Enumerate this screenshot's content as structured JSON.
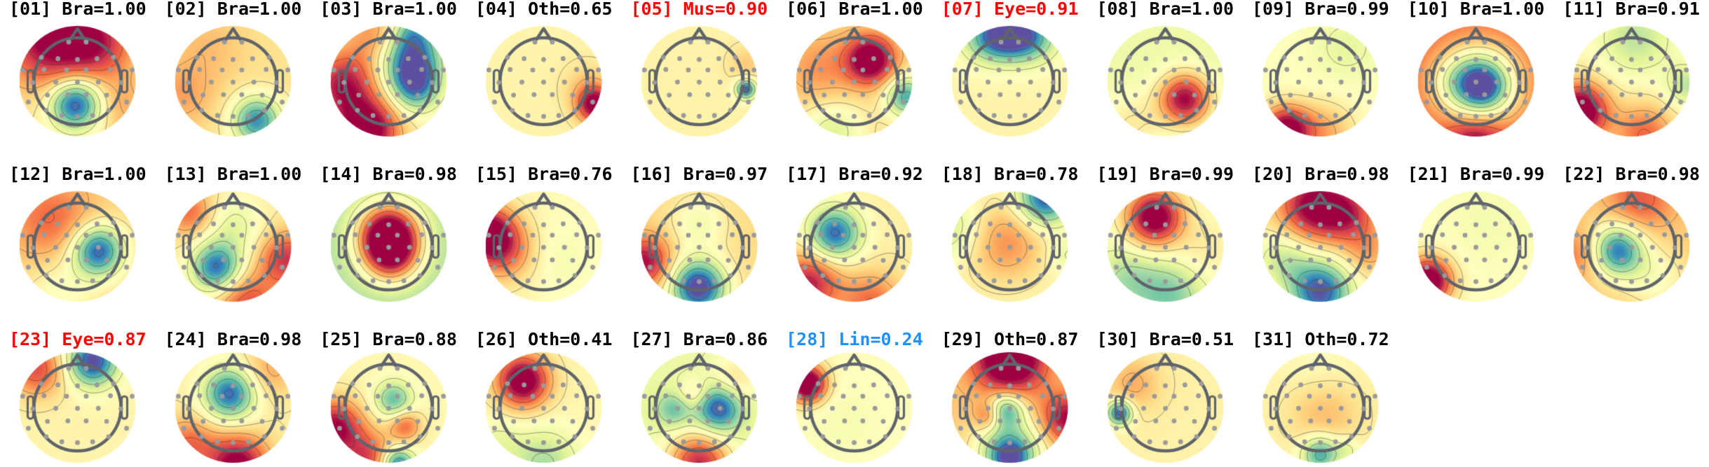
{
  "figure": {
    "background_color": "#ffffff",
    "head_outline_color": "#5f646b",
    "electrode_dot_color": "#9a9a9a",
    "contour_line_color": "rgba(50,50,50,0.55)",
    "label_colors": {
      "normal": "#000000",
      "artifact": "#ff0000",
      "line": "#1e90ff"
    }
  },
  "chart_data": {
    "type": "heatmap",
    "subtype": "eeg_ica_component_topomap_grid",
    "title": "",
    "rows": [
      11,
      11,
      9
    ],
    "colormap_name": "Spectral_r",
    "colormap_stops": [
      [
        -1.0,
        "#5e4fa2"
      ],
      [
        -0.8,
        "#3288bd"
      ],
      [
        -0.6,
        "#66c2a5"
      ],
      [
        -0.4,
        "#abdda4"
      ],
      [
        -0.2,
        "#e6f598"
      ],
      [
        0.0,
        "#ffffbf"
      ],
      [
        0.2,
        "#fee08b"
      ],
      [
        0.4,
        "#fdae61"
      ],
      [
        0.6,
        "#f46d43"
      ],
      [
        0.8,
        "#d53e4f"
      ],
      [
        1.0,
        "#9e0142"
      ]
    ],
    "contour_levels": [
      -0.85,
      -0.6,
      -0.35,
      -0.12,
      0.12,
      0.35,
      0.6,
      0.85
    ],
    "electrodes": [
      [
        -0.2,
        -0.9
      ],
      [
        0.2,
        -0.9
      ],
      [
        -0.83,
        -0.55
      ],
      [
        -0.45,
        -0.52
      ],
      [
        0,
        -0.5
      ],
      [
        0.45,
        -0.52
      ],
      [
        0.83,
        -0.55
      ],
      [
        -1.26,
        -0.26
      ],
      [
        -0.77,
        -0.27
      ],
      [
        -0.25,
        -0.26
      ],
      [
        0.2,
        -0.26
      ],
      [
        0.76,
        -0.27
      ],
      [
        1.26,
        -0.26
      ],
      [
        -1.03,
        0.03
      ],
      [
        -0.5,
        0.02
      ],
      [
        0,
        0.02
      ],
      [
        0.48,
        0.02
      ],
      [
        1.0,
        0.03
      ],
      [
        -0.69,
        0.32
      ],
      [
        -0.22,
        0.31
      ],
      [
        0.2,
        0.31
      ],
      [
        0.67,
        0.32
      ],
      [
        -1.13,
        0.48
      ],
      [
        1.13,
        0.48
      ],
      [
        -0.72,
        0.67
      ],
      [
        0.72,
        0.67
      ],
      [
        -0.36,
        0.79
      ],
      [
        0,
        0.81
      ],
      [
        0.35,
        0.79
      ]
    ],
    "components": [
      {
        "num": 1,
        "label": "Bra",
        "prob": 1.0,
        "title": "[01] Bra=1.00",
        "title_color": "#000000",
        "base": 0.12,
        "sources": [
          [
            -0.6,
            -1.0,
            0.95,
            0.8
          ],
          [
            0.5,
            -0.9,
            0.55,
            0.6
          ],
          [
            -0.05,
            0.52,
            -1.15,
            0.42
          ],
          [
            1.1,
            0.6,
            0.25,
            0.5
          ]
        ]
      },
      {
        "num": 2,
        "label": "Bra",
        "prob": 1.0,
        "title": "[02] Bra=1.00",
        "title_color": "#000000",
        "base": 0.18,
        "sources": [
          [
            0.55,
            0.92,
            -0.95,
            0.4
          ],
          [
            -0.6,
            -0.8,
            0.15,
            0.6
          ],
          [
            -1.2,
            0.3,
            0.25,
            0.5
          ]
        ]
      },
      {
        "num": 3,
        "label": "Bra",
        "prob": 1.0,
        "title": "[03] Bra=1.00",
        "title_color": "#000000",
        "base": 0.08,
        "sources": [
          [
            0.5,
            -0.5,
            -1.05,
            0.5
          ],
          [
            0.62,
            0.15,
            -0.7,
            0.38
          ],
          [
            -1.05,
            0.1,
            0.85,
            0.55
          ],
          [
            -0.5,
            1.15,
            1.1,
            0.5
          ],
          [
            0.55,
            -1.2,
            -0.5,
            0.35
          ],
          [
            -0.25,
            -1.05,
            0.45,
            0.5
          ]
        ]
      },
      {
        "num": 4,
        "label": "Oth",
        "prob": 0.65,
        "title": "[04] Oth=0.65",
        "title_color": "#000000",
        "base": 0.07,
        "sources": [
          [
            1.2,
            0.55,
            1.0,
            0.3
          ],
          [
            1.0,
            0.1,
            0.2,
            0.4
          ]
        ]
      },
      {
        "num": 5,
        "label": "Mus",
        "prob": 0.9,
        "title": "[05] Mus=0.90",
        "title_color": "#ff0000",
        "base": 0.08,
        "sources": [
          [
            1.08,
            0.18,
            -1.0,
            0.16
          ],
          [
            1.1,
            -0.4,
            0.2,
            0.3
          ]
        ]
      },
      {
        "num": 6,
        "label": "Bra",
        "prob": 1.0,
        "title": "[06] Bra=1.00",
        "title_color": "#000000",
        "base": 0.18,
        "sources": [
          [
            0.38,
            -0.5,
            1.05,
            0.4
          ],
          [
            1.2,
            0.35,
            -0.85,
            0.33
          ],
          [
            -0.5,
            1.15,
            -0.4,
            0.5
          ],
          [
            -0.8,
            -0.3,
            0.3,
            0.6
          ]
        ]
      },
      {
        "num": 7,
        "label": "Eye",
        "prob": 0.91,
        "title": "[07] Eye=0.91",
        "title_color": "#ff0000",
        "base": 0.07,
        "sources": [
          [
            0.0,
            -1.12,
            -1.15,
            0.42
          ],
          [
            -0.6,
            -1.0,
            -0.5,
            0.4
          ],
          [
            0.6,
            -1.0,
            -0.5,
            0.4
          ]
        ]
      },
      {
        "num": 8,
        "label": "Bra",
        "prob": 1.0,
        "title": "[08] Bra=1.00",
        "title_color": "#000000",
        "base": -0.12,
        "sources": [
          [
            0.45,
            0.42,
            1.1,
            0.42
          ],
          [
            -0.8,
            1.0,
            0.25,
            0.5
          ]
        ]
      },
      {
        "num": 9,
        "label": "Bra",
        "prob": 0.99,
        "title": "[09] Bra=0.99",
        "title_color": "#000000",
        "base": -0.02,
        "sources": [
          [
            -0.8,
            1.15,
            1.15,
            0.4
          ],
          [
            0.1,
            1.2,
            0.4,
            0.5
          ],
          [
            0.6,
            -0.8,
            -0.15,
            0.5
          ]
        ]
      },
      {
        "num": 10,
        "label": "Bra",
        "prob": 1.0,
        "title": "[10] Bra=1.00",
        "title_color": "#000000",
        "base": 0.6,
        "sources": [
          [
            0.12,
            0.08,
            -1.35,
            0.58
          ],
          [
            0.18,
            0.12,
            -0.4,
            0.3
          ],
          [
            -0.45,
            0.0,
            -0.35,
            0.45
          ],
          [
            0.0,
            1.35,
            0.5,
            0.45
          ]
        ]
      },
      {
        "num": 11,
        "label": "Bra",
        "prob": 0.91,
        "title": "[11] Bra=0.91",
        "title_color": "#000000",
        "base": 0.07,
        "sources": [
          [
            0.1,
            -1.0,
            -0.4,
            0.6
          ],
          [
            -1.2,
            0.7,
            1.2,
            0.45
          ],
          [
            0.3,
            1.25,
            0.55,
            0.5
          ],
          [
            1.3,
            0.1,
            -0.4,
            0.35
          ]
        ]
      },
      {
        "num": 12,
        "label": "Bra",
        "prob": 1.0,
        "title": "[12] Bra=1.00",
        "title_color": "#000000",
        "base": 0.22,
        "sources": [
          [
            -0.6,
            -0.6,
            0.4,
            0.7
          ],
          [
            0.48,
            0.1,
            -1.15,
            0.42
          ],
          [
            -0.4,
            1.0,
            -0.25,
            0.6
          ]
        ]
      },
      {
        "num": 13,
        "label": "Bra",
        "prob": 1.0,
        "title": "[13] Bra=1.00",
        "title_color": "#000000",
        "base": 0.12,
        "sources": [
          [
            -0.38,
            0.5,
            -1.0,
            0.4
          ],
          [
            0.0,
            -0.45,
            -0.3,
            0.5
          ],
          [
            1.25,
            0.3,
            0.7,
            0.45
          ],
          [
            -1.0,
            -0.8,
            0.5,
            0.4
          ],
          [
            0.3,
            1.3,
            0.6,
            0.5
          ]
        ]
      },
      {
        "num": 14,
        "label": "Bra",
        "prob": 0.98,
        "title": "[14] Bra=0.98",
        "title_color": "#000000",
        "base": -0.38,
        "sources": [
          [
            0.0,
            -0.3,
            1.5,
            0.5
          ],
          [
            0.05,
            0.2,
            1.0,
            0.45
          ]
        ]
      },
      {
        "num": 15,
        "label": "Bra",
        "prob": 0.76,
        "title": "[15] Bra=0.76",
        "title_color": "#000000",
        "base": 0.04,
        "sources": [
          [
            -1.3,
            -0.3,
            1.1,
            0.45
          ],
          [
            -0.85,
            0.15,
            0.45,
            0.5
          ],
          [
            0.35,
            0.3,
            -0.12,
            0.6
          ]
        ]
      },
      {
        "num": 16,
        "label": "Bra",
        "prob": 0.97,
        "title": "[16] Bra=0.97",
        "title_color": "#000000",
        "base": 0.22,
        "sources": [
          [
            0.0,
            -0.55,
            -0.3,
            0.45
          ],
          [
            -0.02,
            0.95,
            -1.3,
            0.45
          ],
          [
            -1.25,
            0.35,
            0.75,
            0.4
          ]
        ]
      },
      {
        "num": 17,
        "label": "Bra",
        "prob": 0.92,
        "title": "[17] Bra=0.92",
        "title_color": "#000000",
        "base": 0.1,
        "sources": [
          [
            -0.45,
            -0.3,
            -1.0,
            0.42
          ],
          [
            -1.05,
            0.85,
            0.8,
            0.5
          ],
          [
            0.4,
            1.3,
            0.5,
            0.5
          ]
        ]
      },
      {
        "num": 18,
        "label": "Bra",
        "prob": 0.78,
        "title": "[18] Bra=0.78",
        "title_color": "#000000",
        "base": 0.04,
        "sources": [
          [
            -0.1,
            -0.1,
            0.45,
            0.65
          ],
          [
            0.8,
            -1.1,
            -1.0,
            0.42
          ],
          [
            -1.25,
            -0.4,
            -0.3,
            0.5
          ],
          [
            1.3,
            0.2,
            -0.2,
            0.3
          ]
        ]
      },
      {
        "num": 19,
        "label": "Bra",
        "prob": 0.99,
        "title": "[19] Bra=0.99",
        "title_color": "#000000",
        "base": -0.02,
        "sources": [
          [
            -0.25,
            -0.68,
            1.2,
            0.45
          ],
          [
            0.1,
            1.15,
            -0.5,
            0.55
          ],
          [
            -0.9,
            0.75,
            -0.35,
            0.5
          ],
          [
            0.9,
            0.1,
            0.15,
            0.5
          ]
        ]
      },
      {
        "num": 20,
        "label": "Bra",
        "prob": 0.98,
        "title": "[20] Bra=0.98",
        "title_color": "#000000",
        "base": 0.12,
        "sources": [
          [
            -0.15,
            -0.95,
            0.95,
            0.55
          ],
          [
            0.65,
            -0.75,
            0.6,
            0.45
          ],
          [
            0.0,
            1.05,
            -1.1,
            0.5
          ],
          [
            -0.85,
            0.3,
            -0.4,
            0.45
          ],
          [
            1.1,
            0.1,
            0.3,
            0.4
          ]
        ]
      },
      {
        "num": 21,
        "label": "Bra",
        "prob": 0.99,
        "title": "[21] Bra=0.99",
        "title_color": "#000000",
        "base": 0.0,
        "sources": [
          [
            -1.1,
            0.8,
            1.25,
            0.38
          ],
          [
            0.3,
            -0.6,
            -0.08,
            0.8
          ]
        ]
      },
      {
        "num": 22,
        "label": "Bra",
        "prob": 0.98,
        "title": "[22] Bra=0.98",
        "title_color": "#000000",
        "base": 0.28,
        "sources": [
          [
            -0.32,
            0.1,
            -1.1,
            0.42
          ],
          [
            0.55,
            0.75,
            -0.3,
            0.5
          ],
          [
            0.2,
            -1.1,
            0.4,
            0.5
          ],
          [
            -1.25,
            0.2,
            0.3,
            0.4
          ]
        ]
      },
      {
        "num": 23,
        "label": "Eye",
        "prob": 0.87,
        "title": "[23] Eye=0.87",
        "title_color": "#ff0000",
        "base": 0.07,
        "sources": [
          [
            0.35,
            -1.08,
            -1.1,
            0.4
          ],
          [
            -0.95,
            -0.9,
            0.65,
            0.45
          ]
        ]
      },
      {
        "num": 24,
        "label": "Bra",
        "prob": 0.98,
        "title": "[24] Bra=0.98",
        "title_color": "#000000",
        "base": 0.1,
        "sources": [
          [
            -0.08,
            -0.32,
            -1.0,
            0.42
          ],
          [
            0.1,
            1.35,
            1.0,
            0.5
          ],
          [
            -1.05,
            0.85,
            0.5,
            0.45
          ],
          [
            0.85,
            -0.85,
            0.3,
            0.45
          ]
        ]
      },
      {
        "num": 25,
        "label": "Bra",
        "prob": 0.88,
        "title": "[25] Bra=0.88",
        "title_color": "#000000",
        "base": 0.05,
        "sources": [
          [
            0.12,
            -0.18,
            -0.65,
            0.3
          ],
          [
            0.38,
            0.42,
            0.55,
            0.26
          ],
          [
            -1.25,
            0.45,
            0.95,
            0.45
          ],
          [
            -0.5,
            1.2,
            0.7,
            0.45
          ],
          [
            0.2,
            1.32,
            -1.0,
            0.27
          ]
        ]
      },
      {
        "num": 26,
        "label": "Oth",
        "prob": 0.41,
        "title": "[26] Oth=0.41",
        "title_color": "#000000",
        "base": 0.06,
        "sources": [
          [
            -0.48,
            -0.62,
            1.15,
            0.42
          ],
          [
            0.0,
            1.3,
            -0.45,
            0.55
          ],
          [
            -1.1,
            0.8,
            -0.2,
            0.4
          ]
        ]
      },
      {
        "num": 27,
        "label": "Bra",
        "prob": 0.86,
        "title": "[27] Bra=0.86",
        "title_color": "#000000",
        "base": -0.14,
        "sources": [
          [
            0.45,
            0.0,
            -0.9,
            0.38
          ],
          [
            -0.6,
            0.05,
            -0.45,
            0.28
          ],
          [
            -0.12,
            -0.32,
            0.35,
            0.25
          ],
          [
            0.0,
            1.3,
            1.0,
            0.5
          ],
          [
            0.8,
            -0.6,
            0.35,
            0.4
          ]
        ]
      },
      {
        "num": 28,
        "label": "Lin",
        "prob": 0.24,
        "title": "[28] Lin=0.24",
        "title_color": "#1e90ff",
        "base": 0.03,
        "sources": [
          [
            -1.08,
            -0.55,
            1.35,
            0.3
          ],
          [
            -0.3,
            0.3,
            -0.1,
            0.8
          ]
        ]
      },
      {
        "num": 29,
        "label": "Oth",
        "prob": 0.87,
        "title": "[29] Oth=0.87",
        "title_color": "#000000",
        "base": 0.3,
        "sources": [
          [
            0.0,
            -1.15,
            1.15,
            0.55
          ],
          [
            1.3,
            0.25,
            0.7,
            0.4
          ],
          [
            -0.08,
            0.05,
            -0.8,
            0.28
          ],
          [
            -0.5,
            0.2,
            0.45,
            0.22
          ],
          [
            0.0,
            1.0,
            -0.9,
            0.55
          ],
          [
            0.0,
            1.2,
            -0.6,
            0.3
          ]
        ]
      },
      {
        "num": 30,
        "label": "Bra",
        "prob": 0.51,
        "title": "[30] Bra=0.51",
        "title_color": "#000000",
        "base": 0.09,
        "sources": [
          [
            -1.06,
            0.12,
            -1.05,
            0.2
          ],
          [
            -0.75,
            -0.55,
            0.3,
            0.45
          ]
        ]
      },
      {
        "num": 31,
        "label": "Oth",
        "prob": 0.72,
        "title": "[31] Oth=0.72",
        "title_color": "#000000",
        "base": 0.07,
        "sources": [
          [
            0.1,
            0.15,
            0.28,
            0.6
          ],
          [
            0.0,
            1.08,
            -0.8,
            0.3
          ],
          [
            0.62,
            0.98,
            -0.25,
            0.22
          ],
          [
            0.0,
            -0.8,
            -0.08,
            0.6
          ]
        ]
      }
    ]
  }
}
